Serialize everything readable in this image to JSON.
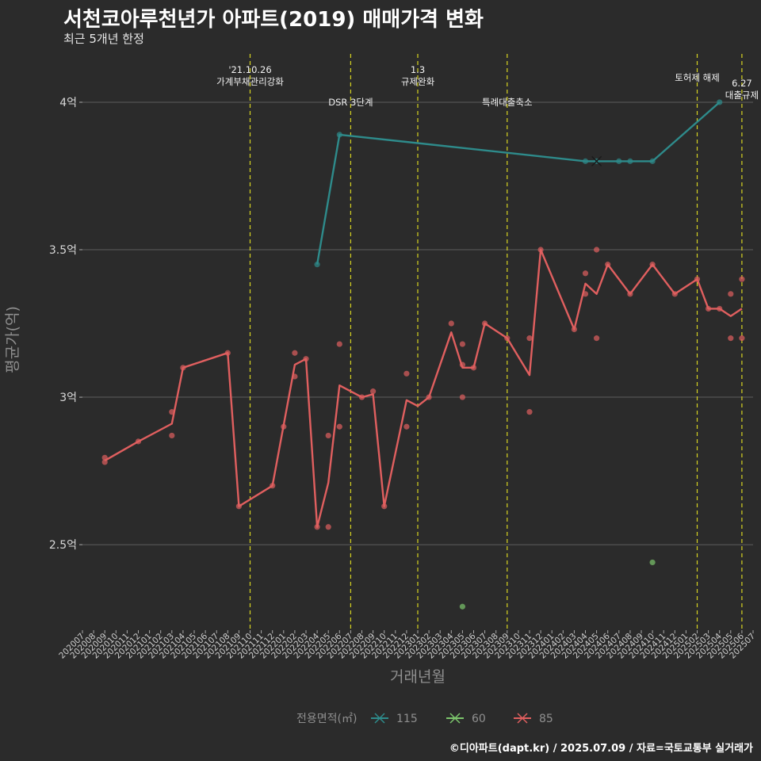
{
  "title": "서천코아루천년가 아파트(2019) 매매가격 변화",
  "subtitle": "최근 5개년 한정",
  "credit": "©디아파트(dapt.kr) / 2025.07.09 / 자료=국토교통부 실거래가",
  "chart_data": {
    "type": "line",
    "xlabel": "거래년월",
    "ylabel": "평균가(억)",
    "ylim": [
      2.21,
      4.18
    ],
    "grid": true,
    "legend_title": "전용면적(㎡)",
    "legend_position": "bottom",
    "x_categories": [
      "202007",
      "202008",
      "202009",
      "202010",
      "202011",
      "202012",
      "202101",
      "202102",
      "202103",
      "202104",
      "202105",
      "202106",
      "202107",
      "202108",
      "202109",
      "202110",
      "202111",
      "202112",
      "202201",
      "202202",
      "202203",
      "202204",
      "202205",
      "202206",
      "202207",
      "202208",
      "202209",
      "202210",
      "202211",
      "202212",
      "202301",
      "202302",
      "202303",
      "202304",
      "202305",
      "202306",
      "202307",
      "202308",
      "202309",
      "202310",
      "202311",
      "202312",
      "202401",
      "202402",
      "202403",
      "202404",
      "202405",
      "202406",
      "202407",
      "202408",
      "202409",
      "202410",
      "202411",
      "202412",
      "202501",
      "202502",
      "202503",
      "202504",
      "202505",
      "202506",
      "202507"
    ],
    "y_ticks": [
      {
        "value": 2.5,
        "label": "2.5억"
      },
      {
        "value": 3.0,
        "label": "3억"
      },
      {
        "value": 3.5,
        "label": "3.5억"
      },
      {
        "value": 4.0,
        "label": "4억"
      }
    ],
    "series": [
      {
        "name": "115",
        "color": "#2e8b8b",
        "line": [
          [
            "202204",
            3.45
          ],
          [
            "202206",
            3.89
          ],
          [
            "202404",
            3.8
          ],
          [
            "202405",
            3.8
          ],
          [
            "202407",
            3.8
          ],
          [
            "202408",
            3.8
          ],
          [
            "202410",
            3.8
          ],
          [
            "202504",
            4.0
          ]
        ],
        "points": [
          [
            "202204",
            3.45
          ],
          [
            "202206",
            3.89
          ],
          [
            "202404",
            3.8
          ],
          [
            "202405",
            3.8
          ],
          [
            "202407",
            3.8
          ],
          [
            "202408",
            3.8
          ],
          [
            "202410",
            3.8
          ],
          [
            "202504",
            4.0
          ]
        ],
        "cross": [
          [
            "202405",
            3.8
          ]
        ]
      },
      {
        "name": "60",
        "color": "#7cc66c",
        "line": [],
        "points": [
          [
            "202305",
            2.29
          ],
          [
            "202410",
            2.44
          ]
        ],
        "cross": []
      },
      {
        "name": "85",
        "color": "#e05f5f",
        "line": [
          [
            "202009",
            2.785
          ],
          [
            "202012",
            2.85
          ],
          [
            "202103",
            2.91
          ],
          [
            "202104",
            3.1
          ],
          [
            "202108",
            3.15
          ],
          [
            "202109",
            2.63
          ],
          [
            "202112",
            2.7
          ],
          [
            "202202",
            3.11
          ],
          [
            "202203",
            3.13
          ],
          [
            "202204",
            2.56
          ],
          [
            "202205",
            2.71
          ],
          [
            "202206",
            3.04
          ],
          [
            "202208",
            3.0
          ],
          [
            "202209",
            3.01
          ],
          [
            "202210",
            2.63
          ],
          [
            "202212",
            2.99
          ],
          [
            "202301",
            2.97
          ],
          [
            "202302",
            3.0
          ],
          [
            "202304",
            3.22
          ],
          [
            "202305",
            3.1
          ],
          [
            "202306",
            3.1
          ],
          [
            "202307",
            3.25
          ],
          [
            "202309",
            3.2
          ],
          [
            "202311",
            3.075
          ],
          [
            "202312",
            3.5
          ],
          [
            "202403",
            3.23
          ],
          [
            "202404",
            3.385
          ],
          [
            "202405",
            3.35
          ],
          [
            "202406",
            3.45
          ],
          [
            "202408",
            3.35
          ],
          [
            "202410",
            3.45
          ],
          [
            "202412",
            3.35
          ],
          [
            "202502",
            3.4
          ],
          [
            "202503",
            3.3
          ],
          [
            "202504",
            3.3
          ],
          [
            "202505",
            3.275
          ],
          [
            "202506",
            3.3
          ]
        ],
        "points": [
          [
            "202009",
            2.78
          ],
          [
            "202009",
            2.795
          ],
          [
            "202012",
            2.85
          ],
          [
            "202103",
            2.87
          ],
          [
            "202103",
            2.95
          ],
          [
            "202104",
            3.1
          ],
          [
            "202108",
            3.15
          ],
          [
            "202109",
            2.63
          ],
          [
            "202112",
            2.7
          ],
          [
            "202201",
            2.9
          ],
          [
            "202202",
            3.15
          ],
          [
            "202202",
            3.07
          ],
          [
            "202203",
            3.13
          ],
          [
            "202204",
            2.56
          ],
          [
            "202205",
            2.56
          ],
          [
            "202205",
            2.87
          ],
          [
            "202206",
            2.9
          ],
          [
            "202206",
            3.18
          ],
          [
            "202208",
            3.0
          ],
          [
            "202209",
            3.02
          ],
          [
            "202210",
            2.63
          ],
          [
            "202212",
            2.9
          ],
          [
            "202212",
            3.08
          ],
          [
            "202302",
            3.0
          ],
          [
            "202304",
            3.25
          ],
          [
            "202305",
            3.0
          ],
          [
            "202305",
            3.11
          ],
          [
            "202305",
            3.18
          ],
          [
            "202306",
            3.1
          ],
          [
            "202307",
            3.25
          ],
          [
            "202309",
            3.2
          ],
          [
            "202311",
            2.95
          ],
          [
            "202311",
            3.2
          ],
          [
            "202312",
            3.5
          ],
          [
            "202403",
            3.23
          ],
          [
            "202404",
            3.35
          ],
          [
            "202404",
            3.42
          ],
          [
            "202405",
            3.2
          ],
          [
            "202405",
            3.5
          ],
          [
            "202406",
            3.45
          ],
          [
            "202408",
            3.35
          ],
          [
            "202410",
            3.45
          ],
          [
            "202412",
            3.35
          ],
          [
            "202502",
            3.4
          ],
          [
            "202503",
            3.3
          ],
          [
            "202504",
            3.3
          ],
          [
            "202505",
            3.2
          ],
          [
            "202505",
            3.35
          ],
          [
            "202506",
            3.2
          ],
          [
            "202506",
            3.4
          ]
        ],
        "cross": []
      }
    ],
    "vlines": [
      {
        "x": "202110",
        "labels": [
          "'21.10.26",
          "가계부채관리강화"
        ],
        "pos": "high"
      },
      {
        "x": "202207",
        "labels": [
          "DSR 3단계"
        ],
        "pos": "low"
      },
      {
        "x": "202301",
        "labels": [
          "1.3",
          "규제완화"
        ],
        "pos": "high"
      },
      {
        "x": "202309",
        "labels": [
          "특례대출축소"
        ],
        "pos": "low"
      },
      {
        "x": "202502",
        "labels": [
          "토허제 해제"
        ],
        "pos": "high"
      },
      {
        "x": "202506",
        "labels": [
          "6.27",
          "대출규제"
        ],
        "pos": "mid"
      }
    ]
  }
}
